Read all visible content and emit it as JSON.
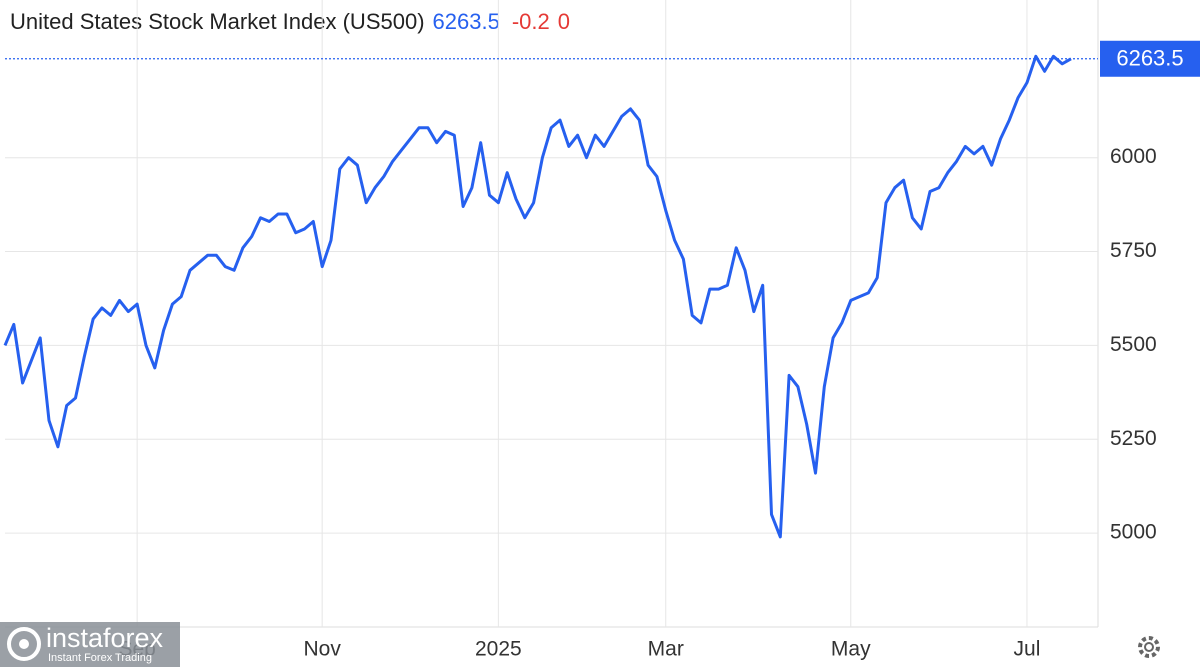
{
  "chart_data": {
    "type": "line",
    "title": "United States Stock Market Index (US500)",
    "last": 6263.5,
    "change": -0.2,
    "change_pct": 0,
    "color": "#2660ef",
    "categories": [
      null,
      null,
      null,
      null,
      null,
      null,
      null,
      null,
      null,
      null,
      null,
      null,
      null,
      null,
      null,
      "Sep",
      null,
      null,
      null,
      null,
      null,
      null,
      null,
      null,
      null,
      null,
      null,
      null,
      null,
      null,
      null,
      null,
      null,
      null,
      null,
      null,
      "Nov",
      null,
      null,
      null,
      null,
      null,
      null,
      null,
      null,
      null,
      null,
      null,
      null,
      null,
      null,
      null,
      null,
      null,
      null,
      null,
      "2025",
      null,
      null,
      null,
      null,
      null,
      null,
      null,
      null,
      null,
      null,
      null,
      null,
      null,
      null,
      null,
      null,
      null,
      null,
      "Mar",
      null,
      null,
      null,
      null,
      null,
      null,
      null,
      null,
      null,
      null,
      null,
      null,
      null,
      null,
      null,
      null,
      null,
      null,
      null,
      null,
      "May",
      null,
      null,
      null,
      null,
      null,
      null,
      null,
      null,
      null,
      null,
      null,
      null,
      null,
      null,
      null,
      null,
      null,
      null,
      null,
      "Jul",
      null,
      null,
      null,
      null,
      null
    ],
    "values": [
      5500,
      5556,
      5400,
      5460,
      5520,
      5300,
      5230,
      5340,
      5360,
      5470,
      5570,
      5600,
      5580,
      5620,
      5590,
      5610,
      5500,
      5440,
      5540,
      5610,
      5630,
      5700,
      5720,
      5740,
      5740,
      5710,
      5700,
      5760,
      5790,
      5840,
      5830,
      5850,
      5850,
      5800,
      5810,
      5830,
      5710,
      5780,
      5970,
      6000,
      5980,
      5880,
      5920,
      5950,
      5990,
      6020,
      6050,
      6080,
      6080,
      6040,
      6070,
      6060,
      5870,
      5920,
      6040,
      5900,
      5880,
      5960,
      5890,
      5840,
      5880,
      6000,
      6080,
      6100,
      6030,
      6060,
      6000,
      6060,
      6030,
      6070,
      6110,
      6130,
      6100,
      5980,
      5950,
      5860,
      5780,
      5730,
      5580,
      5560,
      5650,
      5650,
      5660,
      5760,
      5700,
      5590,
      5660,
      5050,
      4990,
      5420,
      5390,
      5290,
      5160,
      5390,
      5520,
      5560,
      5620,
      5630,
      5640,
      5680,
      5880,
      5920,
      5940,
      5840,
      5810,
      5910,
      5920,
      5960,
      5990,
      6030,
      6010,
      6030,
      5980,
      6050,
      6100,
      6160,
      6200,
      6270,
      6230,
      6270,
      6250,
      6263.5
    ],
    "ylim": [
      4750,
      6420
    ],
    "yticks": [
      5000,
      5250,
      5500,
      5750,
      6000
    ],
    "grid": true
  },
  "watermark": {
    "brand": "instaforex",
    "tagline": "Instant Forex Trading"
  }
}
